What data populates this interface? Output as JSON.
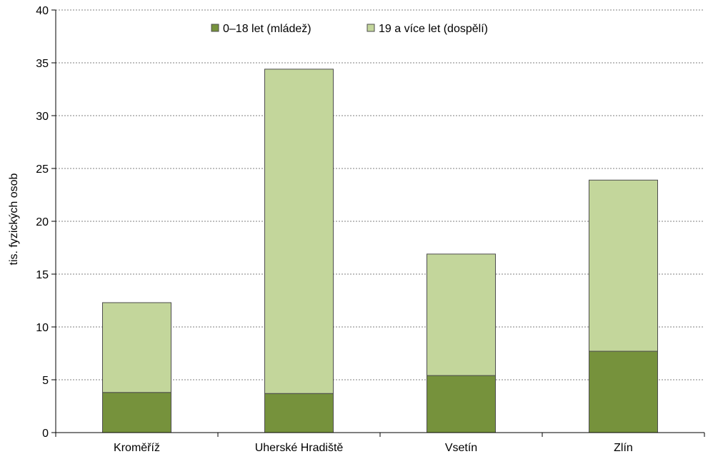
{
  "chart_data": {
    "type": "bar",
    "stacked": true,
    "title": "",
    "xlabel": "",
    "ylabel": "tis. fyzických osob",
    "ylim": [
      0,
      40
    ],
    "yticks": [
      0,
      5,
      10,
      15,
      20,
      25,
      30,
      35,
      40
    ],
    "grid": true,
    "legend_position": "top",
    "categories": [
      "Kroměříž",
      "Uherské Hradiště",
      "Vsetín",
      "Zlín"
    ],
    "series": [
      {
        "name": "0–18 let (mládež)",
        "color": "#76923c",
        "values": [
          3.8,
          3.7,
          5.4,
          7.7
        ]
      },
      {
        "name": "19 a více let (dospělí)",
        "color": "#c3d69b",
        "values": [
          8.5,
          30.7,
          11.5,
          16.2
        ]
      }
    ]
  }
}
